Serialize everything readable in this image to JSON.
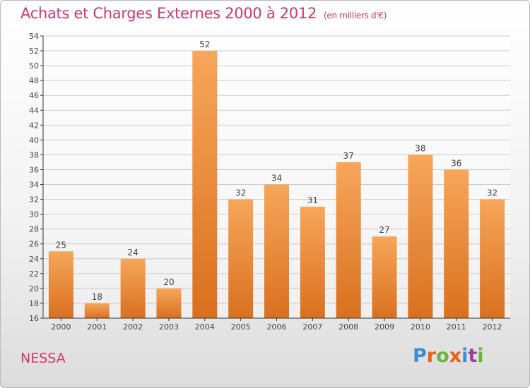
{
  "title": "Achats et Charges Externes 2000 à 2012",
  "subtitle": "(en milliers d'€)",
  "commune": "NESSA",
  "logo": {
    "text": "Proxiti",
    "colors": [
      "#3a8ed6",
      "#e8611a",
      "#6cb33f",
      "#e8611a",
      "#3a8ed6",
      "#9a3fa0",
      "#6cb33f"
    ]
  },
  "colors": {
    "accent": "#d2366e",
    "bar_top": "#f7a65a",
    "bar_bottom": "#d9701f",
    "grid": "#cccccc",
    "axis": "#333333"
  },
  "chart_data": {
    "type": "bar",
    "title": "Achats et Charges Externes 2000 à 2012",
    "xlabel": "",
    "ylabel": "",
    "categories": [
      "2000",
      "2001",
      "2002",
      "2003",
      "2004",
      "2005",
      "2006",
      "2007",
      "2008",
      "2009",
      "2010",
      "2011",
      "2012"
    ],
    "values": [
      25,
      18,
      24,
      20,
      52,
      32,
      34,
      31,
      37,
      27,
      38,
      36,
      32
    ],
    "ylim": [
      16,
      54
    ],
    "yticks": [
      16,
      18,
      20,
      22,
      24,
      26,
      28,
      30,
      32,
      34,
      36,
      38,
      40,
      42,
      44,
      46,
      48,
      50,
      52,
      54
    ],
    "grid": true,
    "legend": "none"
  }
}
